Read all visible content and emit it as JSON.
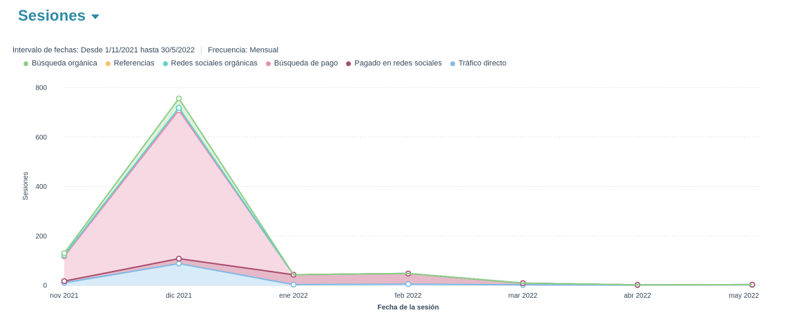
{
  "header": {
    "title": "Sesiones",
    "date_range": "Intervalo de fechas:  Desde 1/11/2021 hasta 30/5/2022",
    "frequency": "Frecuencia:  Mensual"
  },
  "colors": {
    "title": "#2e8aa6",
    "grid": "#dfe3eb",
    "axis": "#cbd6e2"
  },
  "chart_data": {
    "type": "area",
    "stacked": true,
    "categories": [
      "nov 2021",
      "dic 2021",
      "ene 2022",
      "feb 2022",
      "mar 2022",
      "abr 2022",
      "may 2022"
    ],
    "xlabel": "Fecha de la sesión",
    "ylabel": "Sesiones",
    "ylim": [
      0,
      800
    ],
    "yticks": [
      0,
      200,
      400,
      600,
      800
    ],
    "grid": true,
    "legend_position": "top-left",
    "series": [
      {
        "name": "Tráfico directo",
        "color": "#7fb9e6",
        "fill": "#d8ebf9",
        "values": [
          10,
          88,
          3,
          5,
          2,
          1,
          2
        ]
      },
      {
        "name": "Pagado en redes sociales",
        "color": "#a94a6d",
        "fill": "#e5b9c8",
        "values": [
          7,
          20,
          40,
          43,
          7,
          1,
          1
        ]
      },
      {
        "name": "Búsqueda de pago",
        "color": "#e98fae",
        "fill": "#f7d9e3",
        "values": [
          100,
          600,
          0,
          0,
          0,
          0,
          0
        ]
      },
      {
        "name": "Redes sociales orgánicas",
        "color": "#5fcfcf",
        "fill": "#d3f1f1",
        "values": [
          5,
          10,
          0,
          0,
          0,
          0,
          0
        ]
      },
      {
        "name": "Referencias",
        "color": "#f5c26b",
        "fill": "#fdedd0",
        "values": [
          0,
          0,
          0,
          0,
          0,
          0,
          0
        ]
      },
      {
        "name": "Búsqueda orgánica",
        "color": "#8fce86",
        "fill": "#dff2da",
        "values": [
          8,
          38,
          0,
          0,
          0,
          0,
          0
        ]
      }
    ]
  }
}
